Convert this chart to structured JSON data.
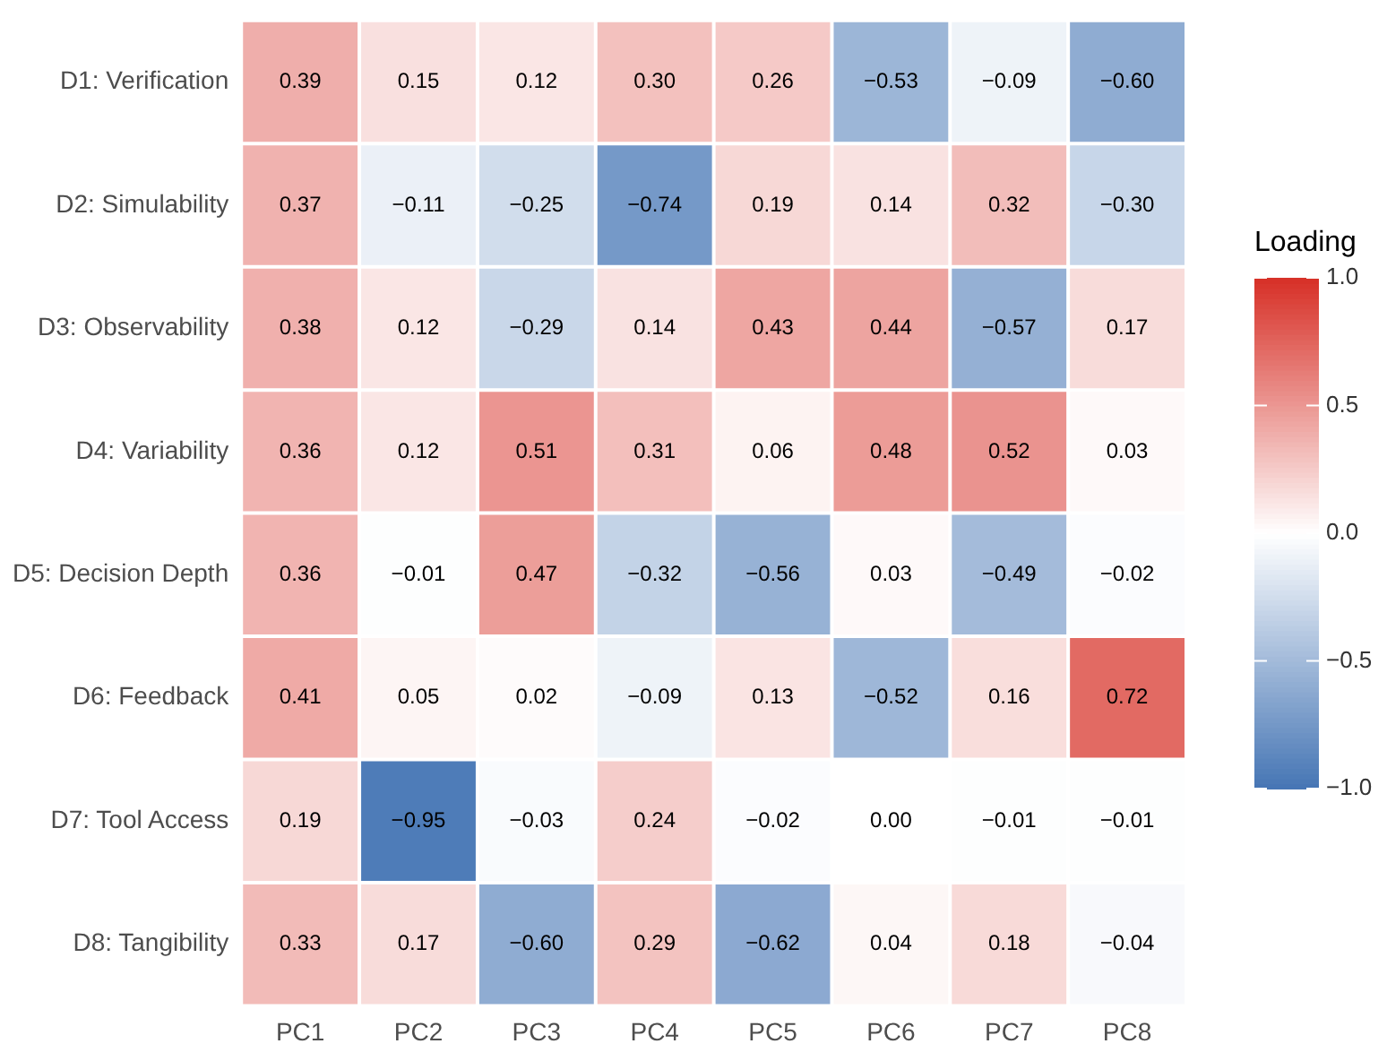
{
  "chart_data": {
    "type": "heatmap",
    "legend_title": "Loading",
    "categories": [
      "PC1",
      "PC2",
      "PC3",
      "PC4",
      "PC5",
      "PC6",
      "PC7",
      "PC8"
    ],
    "y_categories": [
      "D1: Verification",
      "D2: Simulability",
      "D3: Observability",
      "D4: Variability",
      "D5: Decision Depth",
      "D6: Feedback",
      "D7: Tool Access",
      "D8: Tangibility"
    ],
    "cells": [
      [
        0.39,
        0.15,
        0.12,
        0.3,
        0.26,
        -0.53,
        -0.09,
        -0.6
      ],
      [
        0.37,
        -0.11,
        -0.25,
        -0.74,
        0.19,
        0.14,
        0.32,
        -0.3
      ],
      [
        0.38,
        0.12,
        -0.29,
        0.14,
        0.43,
        0.44,
        -0.57,
        0.17
      ],
      [
        0.36,
        0.12,
        0.51,
        0.31,
        0.06,
        0.48,
        0.52,
        0.03
      ],
      [
        0.36,
        -0.01,
        0.47,
        -0.32,
        -0.56,
        0.03,
        -0.49,
        -0.02
      ],
      [
        0.41,
        0.05,
        0.02,
        -0.09,
        0.13,
        -0.52,
        0.16,
        0.72
      ],
      [
        0.19,
        -0.95,
        -0.03,
        0.24,
        -0.02,
        0.0,
        -0.01,
        -0.01
      ],
      [
        0.33,
        0.17,
        -0.6,
        0.29,
        -0.62,
        0.04,
        0.18,
        -0.04
      ]
    ],
    "cell_labels": [
      [
        "0.39",
        "0.15",
        "0.12",
        "0.30",
        "0.26",
        "−0.53",
        "−0.09",
        "−0.60"
      ],
      [
        "0.37",
        "−0.11",
        "−0.25",
        "−0.74",
        "0.19",
        "0.14",
        "0.32",
        "−0.30"
      ],
      [
        "0.38",
        "0.12",
        "−0.29",
        "0.14",
        "0.43",
        "0.44",
        "−0.57",
        "0.17"
      ],
      [
        "0.36",
        "0.12",
        "0.51",
        "0.31",
        "0.06",
        "0.48",
        "0.52",
        "0.03"
      ],
      [
        "0.36",
        "−0.01",
        "0.47",
        "−0.32",
        "−0.56",
        "0.03",
        "−0.49",
        "−0.02"
      ],
      [
        "0.41",
        "0.05",
        "0.02",
        "−0.09",
        "0.13",
        "−0.52",
        "0.16",
        "0.72"
      ],
      [
        "0.19",
        "−0.95",
        "−0.03",
        "0.24",
        "−0.02",
        "0.00",
        "−0.01",
        "−0.01"
      ],
      [
        "0.33",
        "0.17",
        "−0.60",
        "0.29",
        "−0.62",
        "0.04",
        "0.18",
        "−0.04"
      ]
    ],
    "clim": [
      -1,
      1
    ],
    "cticks": [
      {
        "value": 1,
        "label": "1.0"
      },
      {
        "value": 0.5,
        "label": "0.5"
      },
      {
        "value": 0,
        "label": "0.0"
      },
      {
        "value": -0.5,
        "label": "−0.5"
      },
      {
        "value": -1,
        "label": "−1.0"
      }
    ]
  }
}
